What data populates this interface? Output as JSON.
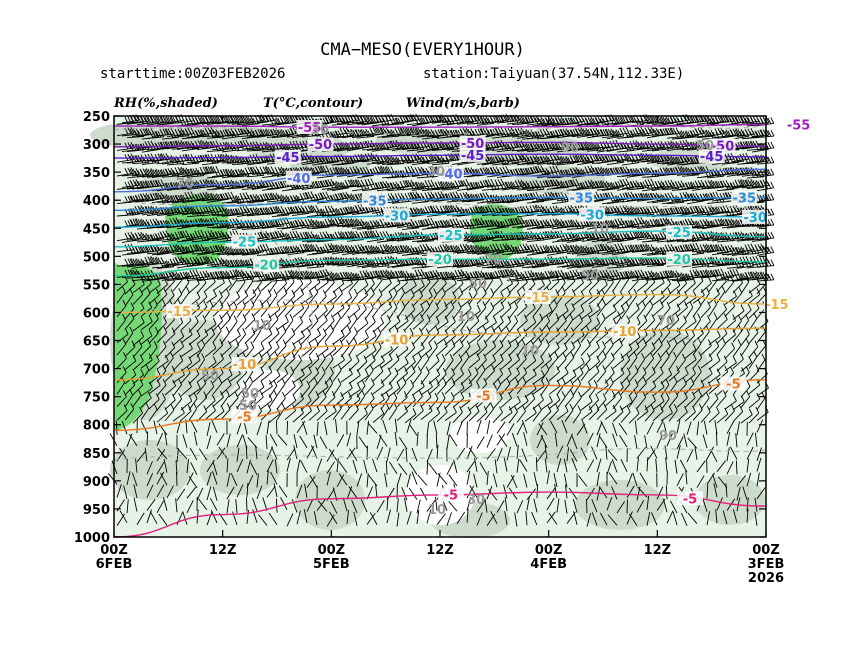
{
  "header": {
    "title": "CMA−MESO(EVERY1HOUR)",
    "starttime": "starttime:00Z03FEB2026",
    "station": "station:Taiyuan(37.54N,112.33E)"
  },
  "legend": {
    "rh": "RH(%,shaded)",
    "temp": "T(°C,contour)",
    "wind": "Wind(m/s,barb)"
  },
  "chart_data": {
    "type": "time-height cross section",
    "y_axis": {
      "ticks": [
        "250",
        "300",
        "350",
        "400",
        "450",
        "500",
        "550",
        "600",
        "650",
        "700",
        "750",
        "800",
        "850",
        "900",
        "950",
        "1000"
      ],
      "range": [
        250,
        1000
      ],
      "inverted": true
    },
    "x_axis": {
      "ticks": [
        {
          "top": "00Z",
          "bottom": "6FEB",
          "extra": ""
        },
        {
          "top": "12Z",
          "bottom": "",
          "extra": ""
        },
        {
          "top": "00Z",
          "bottom": "5FEB",
          "extra": ""
        },
        {
          "top": "12Z",
          "bottom": "",
          "extra": ""
        },
        {
          "top": "00Z",
          "bottom": "4FEB",
          "extra": ""
        },
        {
          "top": "12Z",
          "bottom": "",
          "extra": ""
        },
        {
          "top": "00Z",
          "bottom": "3FEB",
          "extra": "2026"
        }
      ],
      "direction": "time decreasing to the right"
    },
    "rh_colors": {
      "light": "#e6f3e6",
      "mid": "#c9d8c9",
      "high": "#76d776"
    },
    "temperature_contours": [
      {
        "label": "-55",
        "color": "#a020c0",
        "levels": [
          268,
          268,
          270,
          270,
          269,
          268,
          265
        ]
      },
      {
        "label": "-50",
        "color": "#7a1cb8",
        "levels": [
          305,
          303,
          300,
          298,
          297,
          300,
          304
        ]
      },
      {
        "label": "-45",
        "color": "#5a20c8",
        "levels": [
          325,
          324,
          322,
          320,
          318,
          320,
          323
        ]
      },
      {
        "label": "-40",
        "color": "#4f6ee0",
        "levels": [
          385,
          372,
          355,
          352,
          357,
          352,
          345
        ]
      },
      {
        "label": "-35",
        "color": "#2a88d8",
        "levels": [
          418,
          410,
          402,
          398,
          395,
          397,
          395
        ]
      },
      {
        "label": "-30",
        "color": "#1aa8d8",
        "levels": [
          448,
          440,
          430,
          425,
          424,
          428,
          430
        ]
      },
      {
        "label": "-25",
        "color": "#18c0c0",
        "levels": [
          483,
          475,
          470,
          462,
          460,
          455,
          465
        ]
      },
      {
        "label": "-20",
        "color": "#1ec8a0",
        "levels": [
          535,
          520,
          507,
          505,
          505,
          503,
          510
        ]
      },
      {
        "label": "-15",
        "color": "#e8b040",
        "levels": [
          600,
          596,
          585,
          577,
          572,
          568,
          585
        ]
      },
      {
        "label": "-10",
        "color": "#e8a030",
        "levels": [
          720,
          700,
          660,
          640,
          635,
          632,
          628
        ]
      },
      {
        "label": "-5",
        "color": "#e87820",
        "levels": [
          810,
          790,
          765,
          760,
          730,
          742,
          720
        ]
      },
      {
        "label": "-5",
        "color": "#e0207a",
        "levels": [
          1000,
          960,
          932,
          925,
          920,
          925,
          945
        ]
      }
    ],
    "rh_labels": [
      "70",
      "30",
      "50",
      "90",
      "10",
      "30",
      "70",
      "10",
      "50",
      "70",
      "10",
      "50",
      "10",
      "90",
      "30",
      "50",
      "90",
      "10",
      "50"
    ],
    "grid": false
  }
}
